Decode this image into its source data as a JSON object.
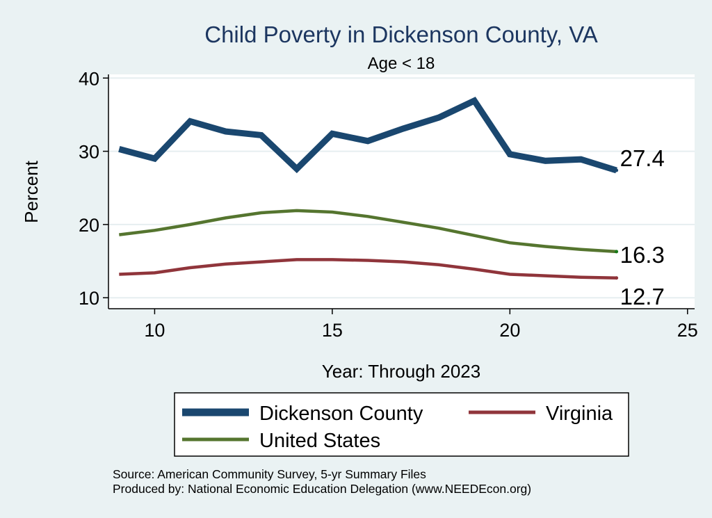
{
  "chart_data": {
    "type": "line",
    "title": "Child Poverty in Dickenson County, VA",
    "subtitle": "Age < 18",
    "xlabel": "Year: Through 2023",
    "ylabel": "Percent",
    "x": [
      9,
      10,
      11,
      12,
      13,
      14,
      15,
      16,
      17,
      18,
      19,
      20,
      21,
      22,
      23
    ],
    "xlim": [
      8.7,
      25.2
    ],
    "ylim": [
      8.5,
      40.5
    ],
    "xticks": [
      10,
      15,
      20,
      25
    ],
    "yticks": [
      10,
      20,
      30,
      40
    ],
    "grid": true,
    "series": [
      {
        "name": "Dickenson County",
        "color": "#1a476f",
        "values": [
          30.3,
          29.0,
          34.1,
          32.7,
          32.2,
          27.6,
          32.4,
          31.4,
          33.1,
          34.6,
          36.9,
          29.6,
          28.7,
          28.9,
          27.4
        ],
        "end_label": "27.4"
      },
      {
        "name": "United States",
        "color": "#55752f",
        "values": [
          18.6,
          19.2,
          20.0,
          20.9,
          21.6,
          21.9,
          21.7,
          21.1,
          20.3,
          19.5,
          18.5,
          17.5,
          17.0,
          16.6,
          16.3
        ],
        "end_label": "16.3"
      },
      {
        "name": "Virginia",
        "color": "#90353b",
        "values": [
          13.2,
          13.4,
          14.1,
          14.6,
          14.9,
          15.2,
          15.2,
          15.1,
          14.9,
          14.5,
          13.9,
          13.2,
          13.0,
          12.8,
          12.7
        ],
        "end_label": "12.7"
      }
    ],
    "legend": {
      "position": "bottom",
      "items": [
        "Dickenson County",
        "Virginia",
        "United States"
      ]
    }
  },
  "source": {
    "line1": "Source: American Community Survey, 5-yr Summary Files",
    "line2": "Produced by: National Economic Education Delegation (www.NEEDEcon.org)"
  }
}
